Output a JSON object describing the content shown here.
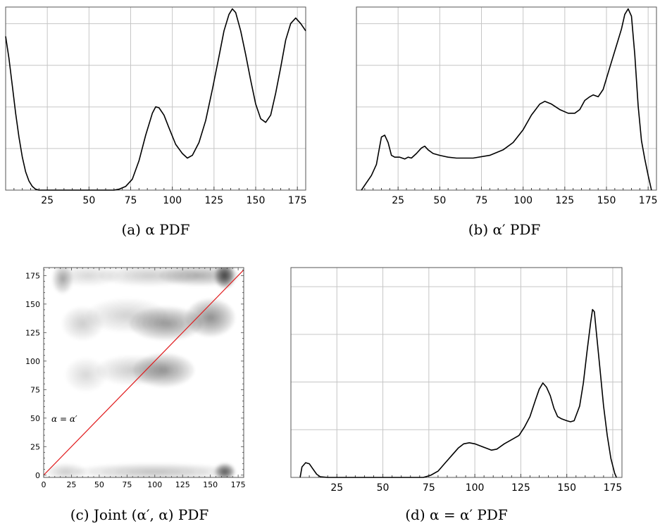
{
  "chart_data": [
    {
      "id": "a",
      "type": "line",
      "caption": "(a) α PDF",
      "xlim": [
        0,
        180
      ],
      "ylim": [
        0,
        1.0
      ],
      "xticks": [
        25,
        50,
        75,
        100,
        125,
        150,
        175
      ],
      "grid": true,
      "series": [
        {
          "points": [
            [
              0,
              0.84
            ],
            [
              2,
              0.72
            ],
            [
              4,
              0.57
            ],
            [
              6,
              0.42
            ],
            [
              8,
              0.29
            ],
            [
              10,
              0.18
            ],
            [
              12,
              0.1
            ],
            [
              14,
              0.05
            ],
            [
              16,
              0.02
            ],
            [
              18,
              0.005
            ],
            [
              20,
              0.0
            ],
            [
              30,
              0.0
            ],
            [
              50,
              0.0
            ],
            [
              65,
              0.0
            ],
            [
              68,
              0.005
            ],
            [
              72,
              0.02
            ],
            [
              76,
              0.06
            ],
            [
              80,
              0.16
            ],
            [
              84,
              0.3
            ],
            [
              88,
              0.42
            ],
            [
              90,
              0.455
            ],
            [
              92,
              0.45
            ],
            [
              95,
              0.41
            ],
            [
              98,
              0.34
            ],
            [
              102,
              0.25
            ],
            [
              106,
              0.2
            ],
            [
              109,
              0.175
            ],
            [
              112,
              0.19
            ],
            [
              116,
              0.26
            ],
            [
              120,
              0.38
            ],
            [
              124,
              0.55
            ],
            [
              128,
              0.73
            ],
            [
              131,
              0.87
            ],
            [
              134,
              0.96
            ],
            [
              136,
              0.99
            ],
            [
              138,
              0.97
            ],
            [
              141,
              0.87
            ],
            [
              144,
              0.74
            ],
            [
              147,
              0.6
            ],
            [
              150,
              0.47
            ],
            [
              153,
              0.39
            ],
            [
              156,
              0.37
            ],
            [
              159,
              0.41
            ],
            [
              162,
              0.53
            ],
            [
              165,
              0.67
            ],
            [
              168,
              0.82
            ],
            [
              171,
              0.91
            ],
            [
              174,
              0.94
            ],
            [
              177,
              0.91
            ],
            [
              180,
              0.87
            ]
          ]
        }
      ]
    },
    {
      "id": "b",
      "type": "line",
      "caption": "(b) α′ PDF",
      "xlim": [
        0,
        180
      ],
      "ylim": [
        0,
        1.0
      ],
      "xticks": [
        25,
        50,
        75,
        100,
        125,
        150,
        175
      ],
      "grid": true,
      "series": [
        {
          "points": [
            [
              3,
              0.0
            ],
            [
              6,
              0.04
            ],
            [
              9,
              0.08
            ],
            [
              12,
              0.14
            ],
            [
              14,
              0.24
            ],
            [
              15,
              0.29
            ],
            [
              17,
              0.3
            ],
            [
              19,
              0.26
            ],
            [
              21,
              0.19
            ],
            [
              23,
              0.18
            ],
            [
              26,
              0.18
            ],
            [
              29,
              0.17
            ],
            [
              31,
              0.18
            ],
            [
              33,
              0.175
            ],
            [
              36,
              0.2
            ],
            [
              39,
              0.23
            ],
            [
              41,
              0.24
            ],
            [
              43,
              0.22
            ],
            [
              46,
              0.2
            ],
            [
              50,
              0.19
            ],
            [
              55,
              0.18
            ],
            [
              60,
              0.175
            ],
            [
              70,
              0.175
            ],
            [
              80,
              0.19
            ],
            [
              88,
              0.22
            ],
            [
              94,
              0.26
            ],
            [
              100,
              0.33
            ],
            [
              105,
              0.41
            ],
            [
              110,
              0.47
            ],
            [
              113,
              0.485
            ],
            [
              117,
              0.47
            ],
            [
              122,
              0.44
            ],
            [
              127,
              0.42
            ],
            [
              131,
              0.42
            ],
            [
              134,
              0.44
            ],
            [
              137,
              0.49
            ],
            [
              140,
              0.51
            ],
            [
              142,
              0.52
            ],
            [
              145,
              0.51
            ],
            [
              148,
              0.55
            ],
            [
              152,
              0.67
            ],
            [
              156,
              0.79
            ],
            [
              159,
              0.88
            ],
            [
              161,
              0.96
            ],
            [
              163,
              0.99
            ],
            [
              165,
              0.95
            ],
            [
              167,
              0.74
            ],
            [
              169,
              0.46
            ],
            [
              171,
              0.27
            ],
            [
              173,
              0.17
            ],
            [
              175,
              0.08
            ],
            [
              177,
              0.0
            ]
          ]
        }
      ]
    },
    {
      "id": "c",
      "type": "heatmap",
      "caption": "(c) Joint (α′, α) PDF",
      "xlim": [
        0,
        180
      ],
      "ylim": [
        -2,
        182
      ],
      "xticks": [
        0,
        25,
        50,
        75,
        100,
        125,
        150,
        175
      ],
      "yticks": [
        0,
        25,
        50,
        75,
        100,
        125,
        150,
        175
      ],
      "annotation": "α = α′",
      "diagonal_color": "#e0191b",
      "blobs": [
        {
          "x": 163,
          "y": 175,
          "sx": 5,
          "sy": 6,
          "w": 1.0
        },
        {
          "x": 140,
          "y": 175,
          "sx": 20,
          "sy": 5,
          "w": 0.35
        },
        {
          "x": 95,
          "y": 175,
          "sx": 25,
          "sy": 5,
          "w": 0.2
        },
        {
          "x": 17,
          "y": 172,
          "sx": 5,
          "sy": 7,
          "w": 0.4
        },
        {
          "x": 40,
          "y": 175,
          "sx": 15,
          "sy": 5,
          "w": 0.15
        },
        {
          "x": 110,
          "y": 133,
          "sx": 18,
          "sy": 8,
          "w": 0.45
        },
        {
          "x": 150,
          "y": 138,
          "sx": 12,
          "sy": 9,
          "w": 0.5
        },
        {
          "x": 35,
          "y": 133,
          "sx": 10,
          "sy": 8,
          "w": 0.2
        },
        {
          "x": 75,
          "y": 140,
          "sx": 20,
          "sy": 8,
          "w": 0.18
        },
        {
          "x": 108,
          "y": 92,
          "sx": 15,
          "sy": 8,
          "w": 0.45
        },
        {
          "x": 80,
          "y": 92,
          "sx": 18,
          "sy": 7,
          "w": 0.2
        },
        {
          "x": 38,
          "y": 88,
          "sx": 10,
          "sy": 8,
          "w": 0.15
        },
        {
          "x": 163,
          "y": 3,
          "sx": 5,
          "sy": 4,
          "w": 0.85
        },
        {
          "x": 100,
          "y": 3,
          "sx": 40,
          "sy": 4,
          "w": 0.25
        },
        {
          "x": 20,
          "y": 3,
          "sx": 10,
          "sy": 4,
          "w": 0.2
        }
      ]
    },
    {
      "id": "d",
      "type": "line",
      "caption": "(d) α = α′ PDF",
      "xlim": [
        0,
        180
      ],
      "ylim": [
        0,
        1.0
      ],
      "xticks": [
        25,
        50,
        75,
        100,
        125,
        150,
        175
      ],
      "grid": true,
      "series": [
        {
          "points": [
            [
              5,
              0.0
            ],
            [
              6,
              0.05
            ],
            [
              8,
              0.07
            ],
            [
              10,
              0.065
            ],
            [
              12,
              0.04
            ],
            [
              14,
              0.015
            ],
            [
              16,
              0.003
            ],
            [
              20,
              0.0
            ],
            [
              50,
              0.0
            ],
            [
              72,
              0.0
            ],
            [
              76,
              0.01
            ],
            [
              80,
              0.03
            ],
            [
              84,
              0.07
            ],
            [
              88,
              0.11
            ],
            [
              91,
              0.14
            ],
            [
              94,
              0.16
            ],
            [
              97,
              0.165
            ],
            [
              100,
              0.16
            ],
            [
              103,
              0.15
            ],
            [
              106,
              0.14
            ],
            [
              109,
              0.13
            ],
            [
              112,
              0.135
            ],
            [
              116,
              0.16
            ],
            [
              120,
              0.18
            ],
            [
              124,
              0.2
            ],
            [
              127,
              0.24
            ],
            [
              130,
              0.29
            ],
            [
              133,
              0.37
            ],
            [
              135,
              0.42
            ],
            [
              137,
              0.45
            ],
            [
              139,
              0.43
            ],
            [
              141,
              0.39
            ],
            [
              143,
              0.33
            ],
            [
              145,
              0.29
            ],
            [
              147,
              0.28
            ],
            [
              150,
              0.27
            ],
            [
              152,
              0.265
            ],
            [
              154,
              0.27
            ],
            [
              157,
              0.34
            ],
            [
              159,
              0.45
            ],
            [
              161,
              0.6
            ],
            [
              163,
              0.74
            ],
            [
              164,
              0.8
            ],
            [
              165,
              0.79
            ],
            [
              166,
              0.7
            ],
            [
              168,
              0.52
            ],
            [
              170,
              0.34
            ],
            [
              172,
              0.2
            ],
            [
              174,
              0.09
            ],
            [
              176,
              0.02
            ],
            [
              177,
              0.0
            ]
          ]
        }
      ]
    }
  ]
}
